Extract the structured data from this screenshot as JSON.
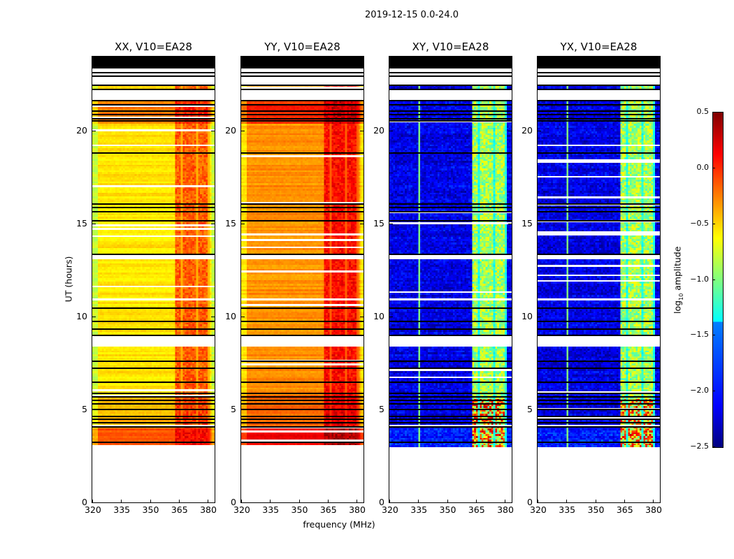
{
  "chart_data": {
    "type": "heatmap",
    "title": "2019-12-15 0.0-24.0",
    "xlabel": "frequency (MHz)",
    "ylabel": "UT (hours)",
    "xlim": [
      320,
      383.6
    ],
    "ylim": [
      0,
      24
    ],
    "xticks": [
      "320",
      "335",
      "350",
      "365",
      "380"
    ],
    "xtick_values": [
      320,
      335,
      350,
      365,
      380
    ],
    "yticks": [
      "0",
      "5",
      "10",
      "15",
      "20"
    ],
    "ytick_values": [
      0,
      5,
      10,
      15,
      20
    ],
    "colorbar": {
      "label": "log10 amplitude",
      "label_main": "log",
      "label_sub": "10",
      "label_rest": " amplitude",
      "range": [
        -2.5,
        0.5
      ],
      "ticks": [
        "0.5",
        "0.0",
        "−0.5",
        "−1.0",
        "−1.5",
        "−2.0",
        "−2.5"
      ],
      "tick_values": [
        0.5,
        0.0,
        -0.5,
        -1.0,
        -1.5,
        -2.0,
        -2.5
      ],
      "colormap": "jet"
    },
    "data_time_range_hours": [
      3.0,
      24.0
    ],
    "flagged_black_hours": [
      [
        23.4,
        24.0
      ]
    ],
    "white_gap_hours": [
      [
        22.45,
        23.4
      ],
      [
        21.6,
        22.3
      ],
      [
        13.05,
        13.3
      ],
      [
        10.85,
        10.95
      ],
      [
        8.35,
        8.9
      ]
    ],
    "black_line_hours": [
      23.38,
      23.12,
      22.93,
      22.44,
      22.22,
      21.62,
      21.39,
      21.05,
      20.86,
      20.64,
      20.53,
      18.8,
      16.05,
      15.86,
      15.64,
      15.15,
      13.35,
      10.45,
      9.74,
      9.32,
      8.98,
      7.59,
      7.22,
      6.47,
      5.86,
      5.68,
      5.49,
      5.3,
      5.0,
      4.62,
      4.47,
      4.29,
      4.06,
      3.23
    ],
    "rfi_band_mhz": [
      363,
      381
    ],
    "panels": [
      {
        "title": "XX, V10=EA28",
        "base_log_amp": -0.55,
        "band_log_amp": -0.15
      },
      {
        "title": "YY, V10=EA28",
        "base_log_amp": -0.3,
        "band_log_amp": 0.1
      },
      {
        "title": "XY, V10=EA28",
        "base_log_amp": -2.2,
        "band_log_amp": -1.0
      },
      {
        "title": "YX, V10=EA28",
        "base_log_amp": -2.2,
        "band_log_amp": -1.0
      }
    ]
  }
}
